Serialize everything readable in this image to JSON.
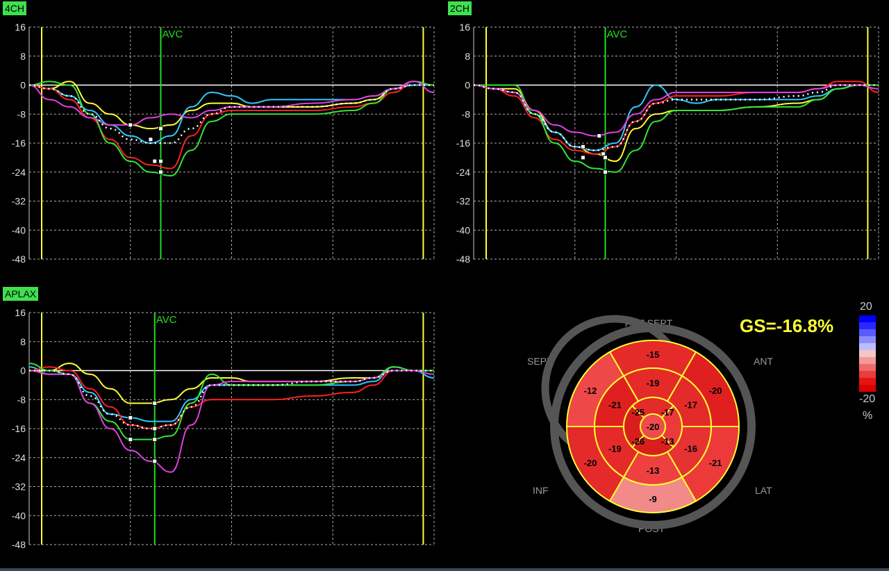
{
  "panels": [
    {
      "label": "4CH"
    },
    {
      "label": "2CH"
    },
    {
      "label": "APLAX"
    }
  ],
  "bullseye": {
    "gs_text": "GS=-16.8%",
    "orientation": {
      "ant_sept": "ANT  SEPT",
      "sept": "SEPT",
      "ant": "ANT",
      "inf": "INF",
      "lat": "LAT",
      "post": "POST"
    },
    "scale": {
      "max": "20",
      "min": "-20",
      "unit": "%"
    },
    "segments": {
      "basal": [
        "-15",
        "-20",
        "-21",
        "-9",
        "-20",
        "-12"
      ],
      "mid": [
        "-19",
        "-17",
        "-16",
        "-13",
        "-19",
        "-21"
      ],
      "apical": [
        "-17",
        "-13",
        "-26",
        "-25"
      ],
      "apex": "-20"
    }
  },
  "chart_data": [
    {
      "type": "line",
      "title": "4CH",
      "ylim": [
        -48,
        16
      ],
      "yticks": [
        16,
        8,
        0,
        -8,
        -16,
        -24,
        -32,
        -40,
        -48
      ],
      "xlim": [
        0,
        1
      ],
      "avc_label": "AVC",
      "markers": {
        "cycle_start": 0.0,
        "avc": 0.325,
        "cycle_end": 0.975
      },
      "series": [
        {
          "color": "#ffff33",
          "x": [
            0,
            0.05,
            0.1,
            0.15,
            0.2,
            0.25,
            0.3,
            0.35,
            0.4,
            0.45,
            0.5,
            0.55,
            0.6,
            0.7,
            0.8,
            0.85,
            0.9,
            0.95,
            1.0
          ],
          "y": [
            0,
            -1,
            1,
            -5,
            -8,
            -11,
            -12,
            -11,
            -7,
            -5,
            -5,
            -6,
            -6,
            -6,
            -5,
            -4,
            -1,
            0,
            0
          ]
        },
        {
          "color": "#33c8ff",
          "x": [
            0,
            0.05,
            0.1,
            0.15,
            0.2,
            0.25,
            0.3,
            0.35,
            0.4,
            0.45,
            0.5,
            0.55,
            0.6,
            0.7,
            0.8,
            0.85,
            0.9,
            0.95,
            1.0
          ],
          "y": [
            0,
            -1,
            -3,
            -7,
            -11,
            -14,
            -16,
            -14,
            -6,
            -2,
            -3,
            -5,
            -4,
            -4,
            -4,
            -3,
            -1,
            0,
            0
          ]
        },
        {
          "color": "#ff2020",
          "x": [
            0,
            0.05,
            0.1,
            0.15,
            0.2,
            0.25,
            0.3,
            0.35,
            0.4,
            0.45,
            0.5,
            0.55,
            0.6,
            0.7,
            0.8,
            0.85,
            0.9,
            0.95,
            1.0
          ],
          "y": [
            0,
            -1,
            -4,
            -9,
            -15,
            -20,
            -22,
            -23,
            -14,
            -8,
            -7,
            -7,
            -7,
            -7,
            -6,
            -5,
            -2,
            1,
            0
          ]
        },
        {
          "color": "#33e633",
          "x": [
            0,
            0.05,
            0.1,
            0.15,
            0.2,
            0.25,
            0.3,
            0.35,
            0.4,
            0.45,
            0.5,
            0.55,
            0.6,
            0.7,
            0.8,
            0.85,
            0.9,
            0.95,
            1.0
          ],
          "y": [
            0,
            1,
            0,
            -8,
            -16,
            -21,
            -24,
            -25,
            -18,
            -10,
            -8,
            -8,
            -8,
            -8,
            -7,
            -5,
            -1,
            1,
            0
          ]
        },
        {
          "color": "#e040e0",
          "x": [
            0,
            0.05,
            0.1,
            0.15,
            0.2,
            0.25,
            0.3,
            0.35,
            0.4,
            0.45,
            0.5,
            0.55,
            0.6,
            0.7,
            0.8,
            0.85,
            0.9,
            0.95,
            1.0
          ],
          "y": [
            0,
            -4,
            -6,
            -9,
            -11,
            -11,
            -9,
            -8,
            -9,
            -7,
            -6,
            -6,
            -6,
            -5,
            -4,
            -3,
            -1,
            1,
            -2
          ]
        },
        {
          "color": "#ffffff",
          "dotted": true,
          "x": [
            0,
            0.05,
            0.1,
            0.15,
            0.2,
            0.25,
            0.3,
            0.35,
            0.4,
            0.45,
            0.5,
            0.55,
            0.6,
            0.7,
            0.8,
            0.85,
            0.9,
            0.95,
            1.0
          ],
          "y": [
            0,
            -1,
            -3,
            -8,
            -12,
            -15,
            -16,
            -16,
            -12,
            -8,
            -6,
            -6,
            -6,
            -6,
            -5,
            -4,
            -1,
            0,
            0
          ]
        }
      ],
      "points": [
        {
          "x": 0.25,
          "y": -11
        },
        {
          "x": 0.3,
          "y": -15
        },
        {
          "x": 0.325,
          "y": -12
        },
        {
          "x": 0.31,
          "y": -21
        },
        {
          "x": 0.325,
          "y": -21
        },
        {
          "x": 0.325,
          "y": -24
        }
      ]
    },
    {
      "type": "line",
      "title": "2CH",
      "ylim": [
        -48,
        16
      ],
      "yticks": [
        16,
        8,
        0,
        -8,
        -16,
        -24,
        -32,
        -40,
        -48
      ],
      "xlim": [
        0,
        1
      ],
      "avc_label": "AVC",
      "markers": {
        "cycle_start": 0.0,
        "avc": 0.325,
        "cycle_end": 0.975
      },
      "series": [
        {
          "color": "#ffff33",
          "x": [
            0,
            0.05,
            0.1,
            0.15,
            0.2,
            0.25,
            0.3,
            0.35,
            0.4,
            0.45,
            0.5,
            0.55,
            0.6,
            0.7,
            0.8,
            0.85,
            0.9,
            0.95,
            1.0
          ],
          "y": [
            0,
            -1,
            -1,
            -7,
            -13,
            -17,
            -19,
            -21,
            -12,
            -8,
            -7,
            -7,
            -7,
            -6,
            -5,
            -4,
            -1,
            0,
            0
          ]
        },
        {
          "color": "#33c8ff",
          "x": [
            0,
            0.05,
            0.1,
            0.15,
            0.2,
            0.25,
            0.3,
            0.35,
            0.4,
            0.45,
            0.5,
            0.55,
            0.6,
            0.7,
            0.8,
            0.85,
            0.9,
            0.95,
            1.0
          ],
          "y": [
            0,
            -1,
            -2,
            -8,
            -13,
            -17,
            -18,
            -16,
            -6,
            0,
            -4,
            -5,
            -4,
            -4,
            -4,
            -3,
            -1,
            0,
            0
          ]
        },
        {
          "color": "#ff2020",
          "x": [
            0,
            0.05,
            0.1,
            0.15,
            0.2,
            0.25,
            0.3,
            0.35,
            0.4,
            0.45,
            0.5,
            0.55,
            0.6,
            0.7,
            0.8,
            0.85,
            0.9,
            0.95,
            1.0
          ],
          "y": [
            0,
            -1,
            -3,
            -9,
            -15,
            -18,
            -19,
            -17,
            -10,
            -5,
            -3,
            -3,
            -3,
            -2,
            -2,
            -1,
            1,
            1,
            -2
          ]
        },
        {
          "color": "#33e633",
          "x": [
            0,
            0.05,
            0.1,
            0.15,
            0.2,
            0.25,
            0.3,
            0.35,
            0.4,
            0.45,
            0.5,
            0.55,
            0.6,
            0.7,
            0.8,
            0.85,
            0.9,
            0.95,
            1.0
          ],
          "y": [
            0,
            0,
            0,
            -8,
            -16,
            -21,
            -23,
            -24,
            -18,
            -10,
            -7,
            -7,
            -7,
            -6,
            -6,
            -4,
            -1,
            0,
            0
          ]
        },
        {
          "color": "#e040e0",
          "x": [
            0,
            0.05,
            0.1,
            0.15,
            0.2,
            0.25,
            0.3,
            0.35,
            0.4,
            0.45,
            0.5,
            0.55,
            0.6,
            0.7,
            0.8,
            0.85,
            0.9,
            0.95,
            1.0
          ],
          "y": [
            0,
            -1,
            -2,
            -7,
            -11,
            -13,
            -14,
            -13,
            -8,
            -4,
            -2,
            -2,
            -2,
            -2,
            -2,
            -1,
            0,
            0,
            -1
          ]
        },
        {
          "color": "#ffffff",
          "dotted": true,
          "x": [
            0,
            0.05,
            0.1,
            0.15,
            0.2,
            0.25,
            0.3,
            0.35,
            0.4,
            0.45,
            0.5,
            0.55,
            0.6,
            0.7,
            0.8,
            0.85,
            0.9,
            0.95,
            1.0
          ],
          "y": [
            0,
            -1,
            -2,
            -8,
            -13,
            -17,
            -18,
            -17,
            -10,
            -5,
            -4,
            -4,
            -4,
            -4,
            -3,
            -2,
            0,
            0,
            0
          ]
        }
      ],
      "points": [
        {
          "x": 0.27,
          "y": -17
        },
        {
          "x": 0.27,
          "y": -20
        },
        {
          "x": 0.31,
          "y": -14
        },
        {
          "x": 0.32,
          "y": -19
        },
        {
          "x": 0.325,
          "y": -20
        },
        {
          "x": 0.325,
          "y": -24
        }
      ]
    },
    {
      "type": "line",
      "title": "APLAX",
      "ylim": [
        -48,
        16
      ],
      "yticks": [
        16,
        8,
        0,
        -8,
        -16,
        -24,
        -32,
        -40,
        -48
      ],
      "xlim": [
        0,
        1
      ],
      "avc_label": "AVC",
      "markers": {
        "cycle_start": 0.0,
        "avc": 0.31,
        "cycle_end": 0.975
      },
      "series": [
        {
          "color": "#ffff33",
          "x": [
            0,
            0.05,
            0.1,
            0.15,
            0.2,
            0.25,
            0.3,
            0.35,
            0.4,
            0.45,
            0.5,
            0.55,
            0.6,
            0.7,
            0.8,
            0.85,
            0.9,
            0.95,
            1.0
          ],
          "y": [
            0,
            0,
            2,
            -1,
            -5,
            -9,
            -9,
            -8,
            -5,
            -2,
            -2,
            -3,
            -3,
            -3,
            -2,
            -2,
            1,
            0,
            0
          ]
        },
        {
          "color": "#33c8ff",
          "x": [
            0,
            0.05,
            0.1,
            0.15,
            0.2,
            0.25,
            0.3,
            0.35,
            0.4,
            0.45,
            0.5,
            0.55,
            0.6,
            0.7,
            0.8,
            0.85,
            0.9,
            0.95,
            1.0
          ],
          "y": [
            1,
            -1,
            -1,
            -6,
            -12,
            -13,
            -14,
            -14,
            -8,
            -4,
            -4,
            -4,
            -4,
            -4,
            -4,
            -3,
            1,
            0,
            -2
          ]
        },
        {
          "color": "#ff2020",
          "x": [
            0,
            0.05,
            0.1,
            0.15,
            0.2,
            0.25,
            0.3,
            0.35,
            0.4,
            0.45,
            0.5,
            0.55,
            0.6,
            0.7,
            0.8,
            0.85,
            0.9,
            0.95,
            1.0
          ],
          "y": [
            0,
            1,
            0,
            -5,
            -10,
            -15,
            -16,
            -15,
            -10,
            -8,
            -8,
            -8,
            -8,
            -7,
            -6,
            -4,
            0,
            0,
            0
          ]
        },
        {
          "color": "#33e633",
          "x": [
            0,
            0.05,
            0.1,
            0.15,
            0.2,
            0.25,
            0.3,
            0.35,
            0.4,
            0.45,
            0.5,
            0.55,
            0.6,
            0.7,
            0.8,
            0.85,
            0.9,
            0.95,
            1.0
          ],
          "y": [
            2,
            0,
            -1,
            -9,
            -14,
            -19,
            -19,
            -18,
            -9,
            -1,
            -4,
            -4,
            -4,
            -4,
            -3,
            -2,
            1,
            0,
            0
          ]
        },
        {
          "color": "#e040e0",
          "x": [
            0,
            0.05,
            0.1,
            0.15,
            0.2,
            0.25,
            0.3,
            0.35,
            0.4,
            0.45,
            0.5,
            0.55,
            0.6,
            0.7,
            0.8,
            0.85,
            0.9,
            0.95,
            1.0
          ],
          "y": [
            0,
            -1,
            -1,
            -9,
            -16,
            -22,
            -25,
            -28,
            -15,
            -4,
            -3,
            -3,
            -3,
            -3,
            -3,
            -2,
            0,
            0,
            -1
          ]
        },
        {
          "color": "#ffffff",
          "dotted": true,
          "x": [
            0,
            0.05,
            0.1,
            0.15,
            0.2,
            0.25,
            0.3,
            0.35,
            0.4,
            0.45,
            0.5,
            0.55,
            0.6,
            0.7,
            0.8,
            0.85,
            0.9,
            0.95,
            1.0
          ],
          "y": [
            0,
            0,
            -1,
            -7,
            -12,
            -15,
            -16,
            -15,
            -10,
            -4,
            -4,
            -4,
            -4,
            -3,
            -3,
            -2,
            0,
            0,
            0
          ]
        }
      ],
      "points": [
        {
          "x": 0.25,
          "y": -13
        },
        {
          "x": 0.25,
          "y": -19
        },
        {
          "x": 0.31,
          "y": -9
        },
        {
          "x": 0.31,
          "y": -16
        },
        {
          "x": 0.31,
          "y": -19
        },
        {
          "x": 0.31,
          "y": -25
        }
      ]
    }
  ]
}
